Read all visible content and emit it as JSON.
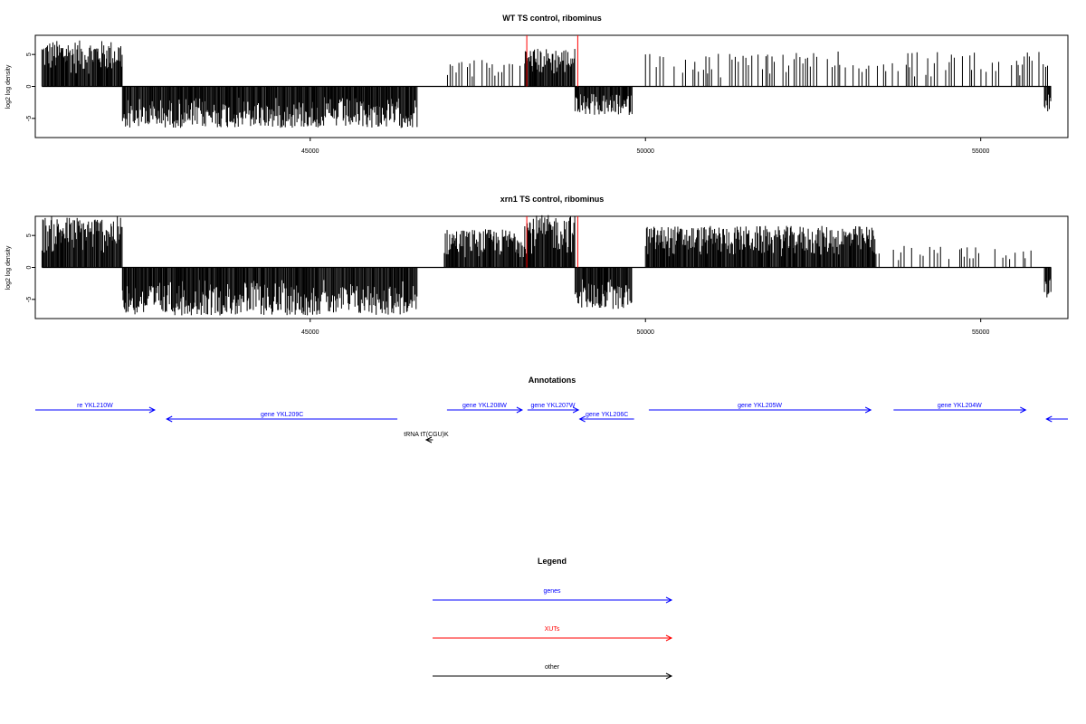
{
  "chart_data": [
    {
      "type": "bar",
      "title": "WT TS control, ribominus",
      "ylabel": "log2 log density",
      "xlabel": "",
      "xlim": [
        40900,
        56300
      ],
      "ylim": [
        -8,
        8
      ],
      "xticks": [
        45000,
        50000,
        55000
      ],
      "yticks": [
        5,
        0,
        -5
      ],
      "signal_segments": [
        {
          "start": 41000,
          "end": 42200,
          "strand": "+",
          "max": 7.2
        },
        {
          "start": 42200,
          "end": 46600,
          "strand": "-",
          "max": -6.5
        },
        {
          "start": 47000,
          "end": 48200,
          "strand": "+",
          "max": 4.5,
          "sparse": true
        },
        {
          "start": 48200,
          "end": 48950,
          "strand": "+",
          "max": 6.0
        },
        {
          "start": 48950,
          "end": 49800,
          "strand": "-",
          "max": -4.5
        },
        {
          "start": 50000,
          "end": 56000,
          "strand": "+",
          "max": 5.5,
          "sparse": true
        },
        {
          "start": 55950,
          "end": 56050,
          "strand": "-",
          "max": -4.0
        }
      ],
      "xut_markers": [
        48230,
        48990
      ]
    },
    {
      "type": "bar",
      "title": "xrn1 TS control, ribominus",
      "ylabel": "log2 log density",
      "xlabel": "",
      "xlim": [
        40900,
        56300
      ],
      "ylim": [
        -8,
        8
      ],
      "xticks": [
        45000,
        50000,
        55000
      ],
      "yticks": [
        5,
        0,
        -5
      ],
      "signal_segments": [
        {
          "start": 41000,
          "end": 42200,
          "strand": "+",
          "max": 8.0
        },
        {
          "start": 42200,
          "end": 46600,
          "strand": "-",
          "max": -7.5
        },
        {
          "start": 47000,
          "end": 48200,
          "strand": "+",
          "max": 6.0
        },
        {
          "start": 48200,
          "end": 48950,
          "strand": "+",
          "max": 8.2
        },
        {
          "start": 48950,
          "end": 49800,
          "strand": "-",
          "max": -6.5
        },
        {
          "start": 50000,
          "end": 53450,
          "strand": "+",
          "max": 6.5
        },
        {
          "start": 53450,
          "end": 55750,
          "strand": "+",
          "max": 3.5,
          "sparse": true
        },
        {
          "start": 55950,
          "end": 56050,
          "strand": "-",
          "max": -5.0
        }
      ],
      "xut_markers": [
        48230,
        48990
      ]
    }
  ],
  "annotations": {
    "title": "Annotations",
    "features": [
      {
        "label": "re YKL210W",
        "start": 40900,
        "end": 42680,
        "strand": "+",
        "kind": "genes",
        "row": 0
      },
      {
        "label": "gene YKL209C",
        "start": 42860,
        "end": 46300,
        "strand": "-",
        "kind": "genes",
        "row": 1
      },
      {
        "label": "tRNA tT(CGU)K",
        "start": 46730,
        "end": 46830,
        "strand": "-",
        "kind": "other",
        "row": 2
      },
      {
        "label": "gene YKL208W",
        "start": 47040,
        "end": 48160,
        "strand": "+",
        "kind": "genes",
        "row": 0
      },
      {
        "label": "gene YKL207W",
        "start": 48240,
        "end": 49000,
        "strand": "+",
        "kind": "genes",
        "row": 0
      },
      {
        "label": "gene YKL206C",
        "start": 49020,
        "end": 49830,
        "strand": "-",
        "kind": "genes",
        "row": 1
      },
      {
        "label": "gene YKL205W",
        "start": 50050,
        "end": 53360,
        "strand": "+",
        "kind": "genes",
        "row": 0
      },
      {
        "label": "gene YKL204W",
        "start": 53700,
        "end": 55670,
        "strand": "+",
        "kind": "genes",
        "row": 0
      },
      {
        "label": "",
        "start": 55980,
        "end": 56300,
        "strand": "-",
        "kind": "genes",
        "row": 1
      }
    ]
  },
  "legend": {
    "title": "Legend",
    "items": [
      {
        "label": "genes",
        "color": "#0000ff"
      },
      {
        "label": "XUTs",
        "color": "#ff0000"
      },
      {
        "label": "other",
        "color": "#000000"
      }
    ]
  },
  "colors": {
    "signal": "#000000",
    "xut": "#ff0000",
    "gene": "#0000ff",
    "other": "#000000",
    "frame": "#000000"
  }
}
